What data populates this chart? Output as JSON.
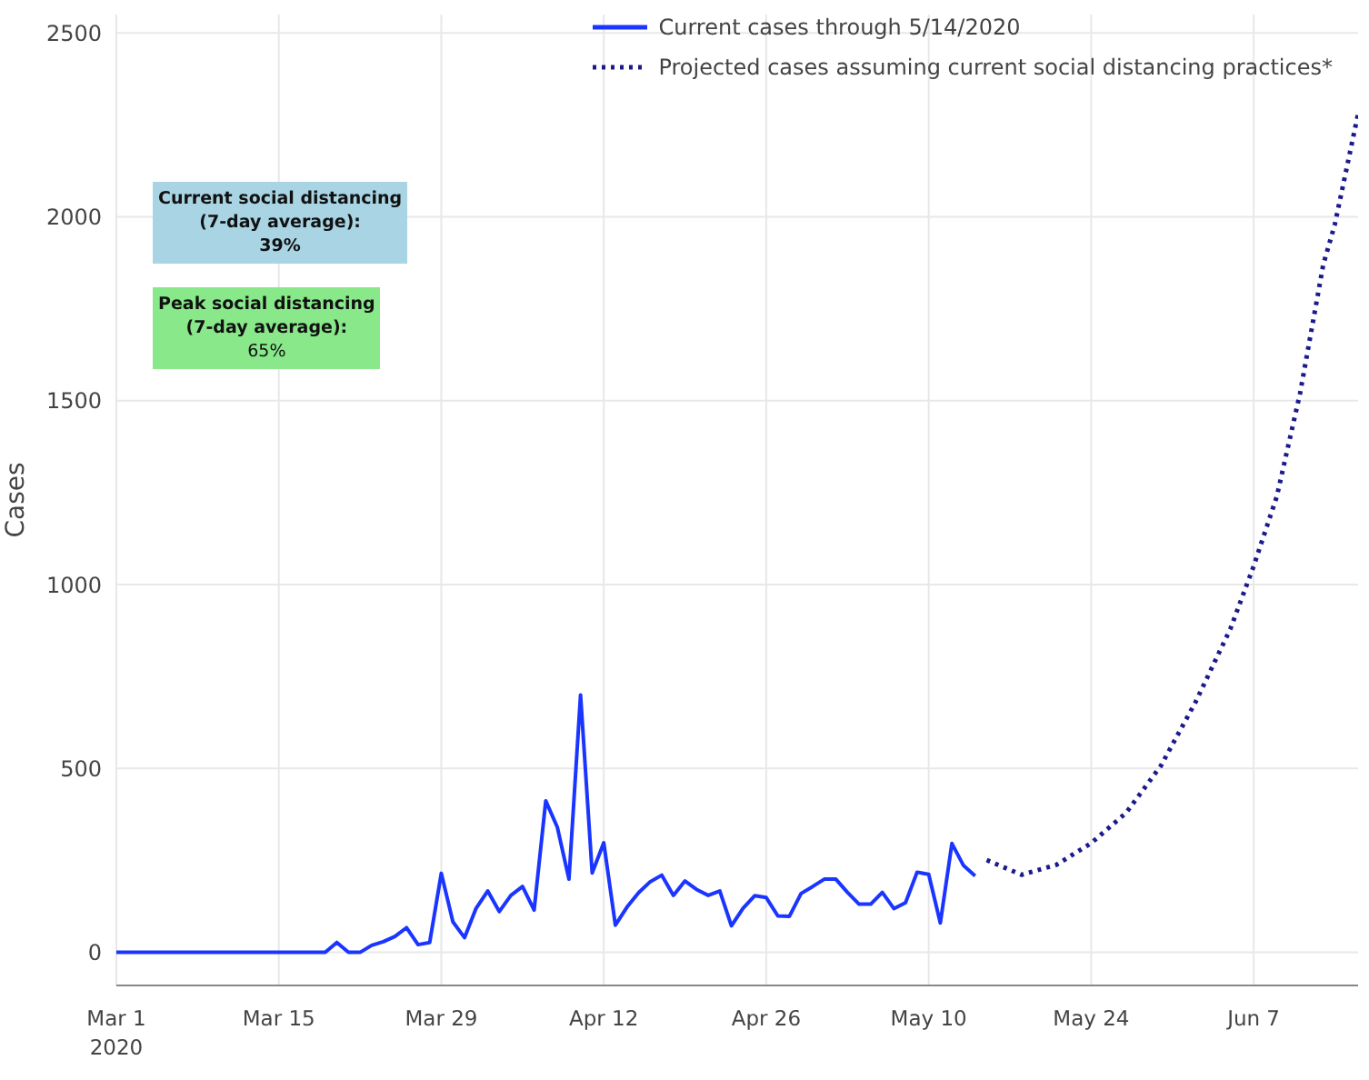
{
  "chart_data": {
    "type": "line",
    "ylabel": "Cases",
    "annotations": [
      "Current social distancing\n(7-day average):\n39%",
      "Peak social distancing\n(7-day average):\n65%"
    ],
    "series": [
      {
        "name": "Current cases through 5/14/2020",
        "color": "#1a35ff",
        "line_style": "solid",
        "x": [
          "2020-03-01",
          "2020-03-05",
          "2020-03-10",
          "2020-03-15",
          "2020-03-19",
          "2020-03-20",
          "2020-03-21",
          "2020-03-22",
          "2020-03-23",
          "2020-03-24",
          "2020-03-25",
          "2020-03-26",
          "2020-03-27",
          "2020-03-28",
          "2020-03-29",
          "2020-03-30",
          "2020-03-31",
          "2020-04-01",
          "2020-04-02",
          "2020-04-03",
          "2020-04-04",
          "2020-04-05",
          "2020-04-06",
          "2020-04-07",
          "2020-04-08",
          "2020-04-09",
          "2020-04-10",
          "2020-04-11",
          "2020-04-12",
          "2020-04-13",
          "2020-04-14",
          "2020-04-15",
          "2020-04-16",
          "2020-04-17",
          "2020-04-18",
          "2020-04-19",
          "2020-04-20",
          "2020-04-21",
          "2020-04-22",
          "2020-04-23",
          "2020-04-24",
          "2020-04-25",
          "2020-04-26",
          "2020-04-27",
          "2020-04-28",
          "2020-04-29",
          "2020-04-30",
          "2020-05-01",
          "2020-05-02",
          "2020-05-03",
          "2020-05-04",
          "2020-05-05",
          "2020-05-06",
          "2020-05-07",
          "2020-05-08",
          "2020-05-09",
          "2020-05-10",
          "2020-05-11",
          "2020-05-12",
          "2020-05-13",
          "2020-05-14"
        ],
        "values": [
          0,
          0,
          0,
          0,
          0,
          27,
          0,
          0,
          19,
          29,
          43,
          67,
          21,
          27,
          215,
          83,
          40,
          120,
          167,
          111,
          155,
          179,
          115,
          412,
          340,
          199,
          700,
          216,
          298,
          74,
          123,
          162,
          192,
          210,
          155,
          194,
          171,
          155,
          167,
          72,
          120,
          154,
          149,
          99,
          98,
          160,
          179,
          199,
          199,
          163,
          131,
          131,
          163,
          119,
          135,
          218,
          212,
          80,
          296,
          236,
          208
        ]
      },
      {
        "name": "Projected cases assuming current social distancing practices*",
        "color": "#1a1a8c",
        "line_style": "dotted",
        "x": [
          "2020-05-15",
          "2020-05-18",
          "2020-05-21",
          "2020-05-24",
          "2020-05-27",
          "2020-05-30",
          "2020-06-02",
          "2020-06-05",
          "2020-06-07",
          "2020-06-09",
          "2020-06-11",
          "2020-06-13",
          "2020-06-14",
          "2020-06-16"
        ],
        "values": [
          251,
          211,
          238,
          297,
          379,
          507,
          681,
          880,
          1050,
          1240,
          1520,
          1870,
          1980,
          2280
        ]
      }
    ],
    "xlim": [
      "2020-03-01",
      "2020-06-16"
    ],
    "xticks": [
      {
        "value": "2020-03-01",
        "label": "Mar 1\n2020"
      },
      {
        "value": "2020-03-15",
        "label": "Mar 15"
      },
      {
        "value": "2020-03-29",
        "label": "Mar 29"
      },
      {
        "value": "2020-04-12",
        "label": "Apr 12"
      },
      {
        "value": "2020-04-26",
        "label": "Apr 26"
      },
      {
        "value": "2020-05-10",
        "label": "May 10"
      },
      {
        "value": "2020-05-24",
        "label": "May 24"
      },
      {
        "value": "2020-06-07",
        "label": "Jun 7"
      }
    ],
    "ylim": [
      -90,
      2550
    ],
    "yticks": [
      0,
      500,
      1000,
      1500,
      2000,
      2500
    ],
    "grid": true,
    "legend": "top right",
    "marker": "none"
  }
}
